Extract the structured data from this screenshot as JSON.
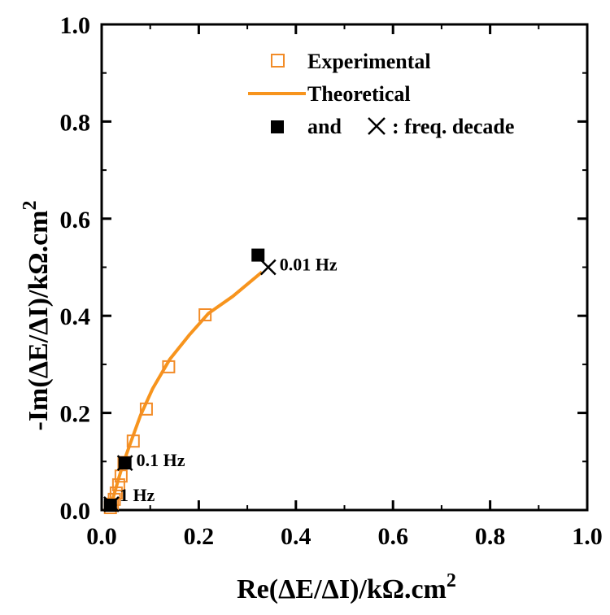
{
  "chart_data": {
    "type": "scatter",
    "xlabel": "Re(ΔE/ΔI)/kΩ.cm",
    "xlabel_sup": "2",
    "ylabel": "-Im(ΔE/ΔI)/kΩ.cm",
    "ylabel_sup": "2",
    "xlim": [
      0.0,
      1.0
    ],
    "ylim": [
      0.0,
      1.0
    ],
    "xticks": [
      "0.0",
      "0.2",
      "0.4",
      "0.6",
      "0.8",
      "1.0"
    ],
    "yticks": [
      "0.0",
      "0.2",
      "0.4",
      "0.6",
      "0.8",
      "1.0"
    ],
    "grid": false,
    "legend_position": "top-right",
    "legend": {
      "experimental": "Experimental",
      "theoretical": "Theoretical",
      "decade_and": "and",
      "decade_text": ": freq. decade"
    },
    "colors": {
      "experimental": "#f28c28",
      "theoretical": "#f7941d",
      "decade": "#000000"
    },
    "series": [
      {
        "name": "Experimental",
        "style": "open-square",
        "x": [
          0.018,
          0.022,
          0.026,
          0.03,
          0.035,
          0.04,
          0.046,
          0.065,
          0.092,
          0.138,
          0.213
        ],
        "y": [
          0.005,
          0.012,
          0.022,
          0.035,
          0.052,
          0.07,
          0.098,
          0.142,
          0.208,
          0.295,
          0.402
        ]
      },
      {
        "name": "Theoretical",
        "style": "line",
        "x": [
          0.015,
          0.025,
          0.035,
          0.045,
          0.06,
          0.08,
          0.105,
          0.14,
          0.18,
          0.22,
          0.27,
          0.33
        ],
        "y": [
          0.0,
          0.03,
          0.065,
          0.098,
          0.14,
          0.195,
          0.25,
          0.31,
          0.36,
          0.405,
          0.44,
          0.49
        ]
      },
      {
        "name": "Frequency decade (experimental)",
        "style": "filled-square",
        "x": [
          0.018,
          0.048,
          0.322
        ],
        "y": [
          0.01,
          0.097,
          0.525
        ]
      },
      {
        "name": "Frequency decade (theoretical)",
        "style": "cross",
        "x": [
          0.02,
          0.048,
          0.343
        ],
        "y": [
          0.012,
          0.097,
          0.5
        ]
      }
    ],
    "annotations": [
      {
        "text": "0.01 Hz",
        "x": 0.343,
        "y": 0.5
      },
      {
        "text": "0.1 Hz",
        "x": 0.048,
        "y": 0.097
      },
      {
        "text": "1 Hz",
        "x": 0.02,
        "y": 0.012
      }
    ]
  }
}
